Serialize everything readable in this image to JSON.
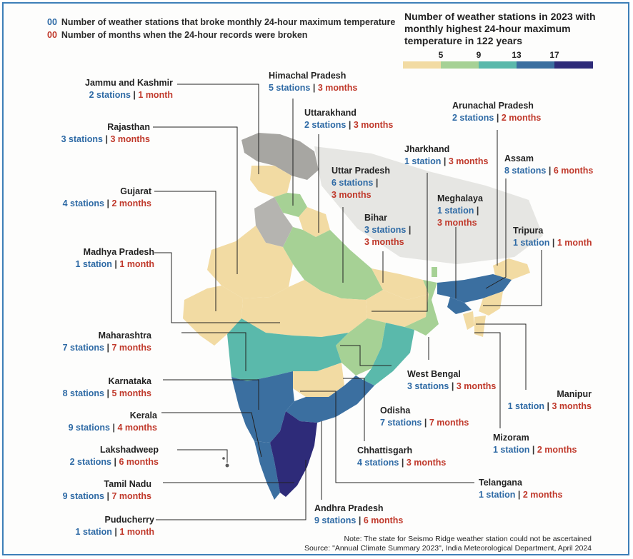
{
  "legend": {
    "stations_sample": "00",
    "stations_text": "Number of weather stations that broke monthly 24-hour maximum temperature",
    "months_sample": "00",
    "months_text": "Number of months when the 24-hour records were broken"
  },
  "scale": {
    "title": "Number of weather stations in 2023 with monthly highest 24-hour maximum temperature in 122 years",
    "ticks": [
      "5",
      "9",
      "13",
      "17"
    ],
    "colors": [
      "#f2dba3",
      "#a6d195",
      "#5ab9ab",
      "#3b6fa0",
      "#2e2b79"
    ]
  },
  "states": [
    {
      "name": "Jammu and Kashmir",
      "stations": "2 stations",
      "months": "1 month"
    },
    {
      "name": "Himachal Pradesh",
      "stations": "5 stations",
      "months": "3 months"
    },
    {
      "name": "Uttarakhand",
      "stations": "2 stations",
      "months": "3 months"
    },
    {
      "name": "Rajasthan",
      "stations": "3 stations",
      "months": "3 months"
    },
    {
      "name": "Uttar Pradesh",
      "stations": "6 stations",
      "months": "3 months"
    },
    {
      "name": "Gujarat",
      "stations": "4 stations",
      "months": "2 months"
    },
    {
      "name": "Bihar",
      "stations": "3 stations",
      "months": "3 months"
    },
    {
      "name": "Madhya Pradesh",
      "stations": "1 station",
      "months": "1 month"
    },
    {
      "name": "Jharkhand",
      "stations": "1 station",
      "months": "3 months"
    },
    {
      "name": "Arunachal Pradesh",
      "stations": "2 stations",
      "months": "2 months"
    },
    {
      "name": "Assam",
      "stations": "8 stations",
      "months": "6 months"
    },
    {
      "name": "Meghalaya",
      "stations": "1 station",
      "months": "3 months"
    },
    {
      "name": "Tripura",
      "stations": "1 station",
      "months": "1 month"
    },
    {
      "name": "Maharashtra",
      "stations": "7 stations",
      "months": "7 months"
    },
    {
      "name": "West Bengal",
      "stations": "3 stations",
      "months": "3 months"
    },
    {
      "name": "Karnataka",
      "stations": "8 stations",
      "months": "5 months"
    },
    {
      "name": "Manipur",
      "stations": "1 station",
      "months": "3 months"
    },
    {
      "name": "Kerala",
      "stations": "9 stations",
      "months": "4 months"
    },
    {
      "name": "Odisha",
      "stations": "7 stations",
      "months": "7 months"
    },
    {
      "name": "Mizoram",
      "stations": "1 station",
      "months": "2 months"
    },
    {
      "name": "Lakshadweep",
      "stations": "2 stations",
      "months": "6 months"
    },
    {
      "name": "Chhattisgarh",
      "stations": "4 stations",
      "months": "3 months"
    },
    {
      "name": "Telangana",
      "stations": "1 station",
      "months": "2 months"
    },
    {
      "name": "Tamil Nadu",
      "stations": "9 stations",
      "months": "7 months"
    },
    {
      "name": "Andhra Pradesh",
      "stations": "9 stations",
      "months": "6 months"
    },
    {
      "name": "Puducherry",
      "stations": "1 station",
      "months": "1 month"
    }
  ],
  "footer": {
    "note": "Note: The state for Seismo Ridge weather station could not be ascertained",
    "source": "Source: \"Annual Climate Summary 2023\", India Meteorological Department, April 2024"
  }
}
